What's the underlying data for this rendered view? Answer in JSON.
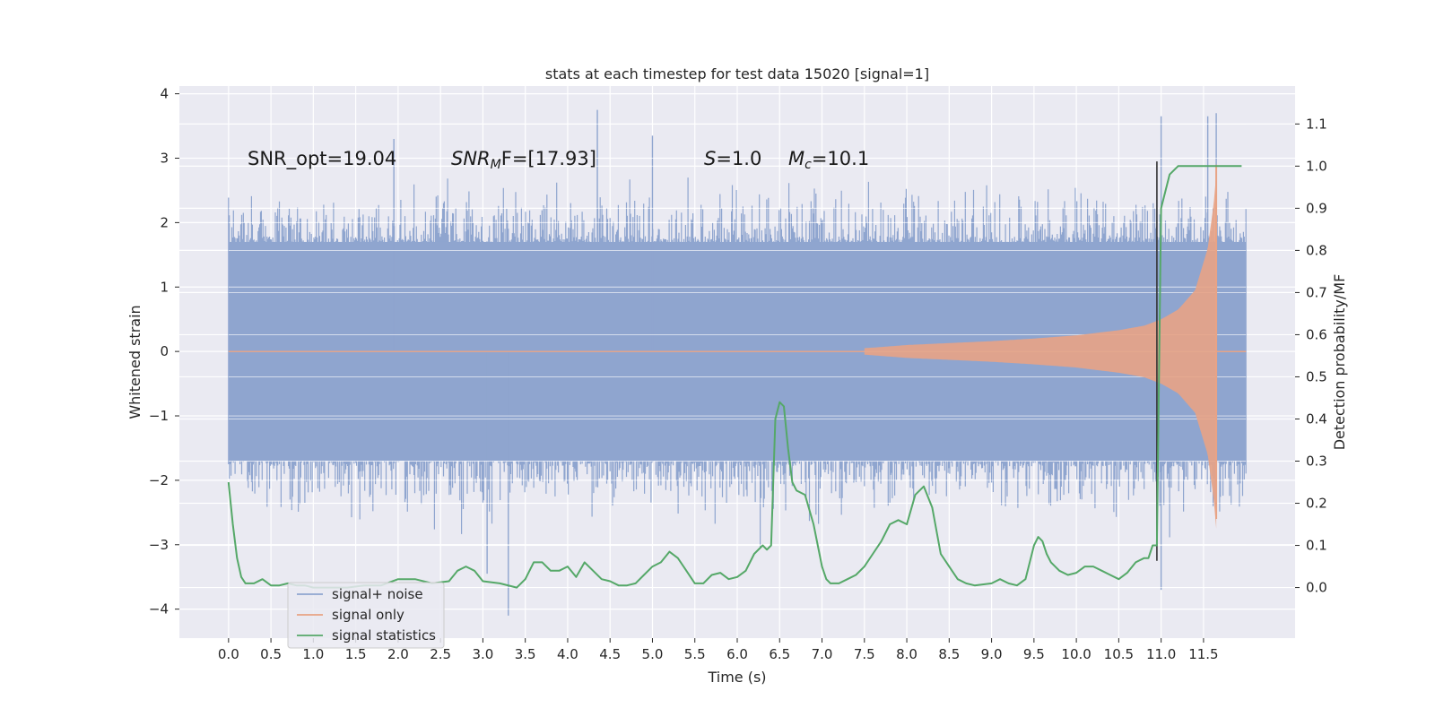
{
  "chart_data": {
    "type": "line",
    "title": "stats at each timestep for test data 15020 [signal=1]",
    "xlabel": "Time (s)",
    "ylabel": "Whitened strain",
    "y2label": "Detection probability/MF",
    "xlim": [
      -0.58,
      12.58
    ],
    "ylim": [
      -4.45,
      4.12
    ],
    "y2lim": [
      -0.12,
      1.19
    ],
    "x_ticks": [
      "0.0",
      "0.5",
      "1.0",
      "1.5",
      "2.0",
      "2.5",
      "3.0",
      "3.5",
      "4.0",
      "4.5",
      "5.0",
      "5.5",
      "6.0",
      "6.5",
      "7.0",
      "7.5",
      "8.0",
      "8.5",
      "9.0",
      "9.5",
      "10.0",
      "10.5",
      "11.0",
      "11.5"
    ],
    "y_ticks": [
      "4",
      "3",
      "2",
      "1",
      "0",
      "−1",
      "−2",
      "−3",
      "−4"
    ],
    "y_tick_values": [
      4,
      3,
      2,
      1,
      0,
      -1,
      -2,
      -3,
      -4
    ],
    "y2_ticks": [
      "1.1",
      "1.0",
      "0.9",
      "0.8",
      "0.7",
      "0.6",
      "0.5",
      "0.4",
      "0.3",
      "0.2",
      "0.1",
      "0.0"
    ],
    "y2_tick_values": [
      1.1,
      1.0,
      0.9,
      0.8,
      0.7,
      0.6,
      0.5,
      0.4,
      0.3,
      0.2,
      0.1,
      0.0
    ],
    "grid": true,
    "legend_placement": "lower-left",
    "annotations": {
      "snr_opt": "SNR_opt=19.04",
      "snr_mf_sym": "SNR",
      "snr_mf_sub": "M",
      "snr_mf_rest": "F=[17.93]",
      "s_sym": "S",
      "s_rest": "=1.0",
      "mc_sym": "M",
      "mc_sub": "c",
      "mc_rest": "=10.1"
    },
    "series": [
      {
        "name": "signal+ noise",
        "color": "#8fa5cf",
        "time_range": [
          0.0,
          12.0
        ],
        "envelope_typical": [
          -1.7,
          1.7
        ],
        "extremes": [
          {
            "x": 4.35,
            "y": 3.75
          },
          {
            "x": 3.3,
            "y": -4.1
          },
          {
            "x": 11.0,
            "y": -3.7
          },
          {
            "x": 11.55,
            "y": 3.65
          },
          {
            "x": 11.65,
            "y": 3.7
          },
          {
            "x": 11.0,
            "y": 3.65
          },
          {
            "x": 5.0,
            "y": 3.35
          },
          {
            "x": 1.95,
            "y": 3.3
          },
          {
            "x": 3.05,
            "y": -3.45
          }
        ]
      },
      {
        "name": "signal only",
        "color": "#e8a385",
        "type_detail": "chirp",
        "start_time": 7.5,
        "merger_time": 11.65,
        "end_time": 11.7,
        "amplitude": [
          {
            "x": 7.5,
            "y": 0.05
          },
          {
            "x": 8.0,
            "y": 0.1
          },
          {
            "x": 8.5,
            "y": 0.13
          },
          {
            "x": 9.0,
            "y": 0.16
          },
          {
            "x": 9.5,
            "y": 0.2
          },
          {
            "x": 10.0,
            "y": 0.25
          },
          {
            "x": 10.5,
            "y": 0.33
          },
          {
            "x": 10.8,
            "y": 0.4
          },
          {
            "x": 11.0,
            "y": 0.5
          },
          {
            "x": 11.2,
            "y": 0.65
          },
          {
            "x": 11.4,
            "y": 0.95
          },
          {
            "x": 11.55,
            "y": 1.6
          },
          {
            "x": 11.62,
            "y": 2.3
          },
          {
            "x": 11.66,
            "y": 2.9
          }
        ]
      },
      {
        "name": "signal statistics",
        "color": "#55a868",
        "axis": "right",
        "x": [
          0.0,
          0.05,
          0.1,
          0.15,
          0.2,
          0.3,
          0.4,
          0.5,
          0.6,
          0.7,
          0.8,
          0.9,
          1.0,
          1.2,
          1.4,
          1.6,
          1.8,
          2.0,
          2.2,
          2.4,
          2.6,
          2.7,
          2.8,
          2.9,
          3.0,
          3.2,
          3.4,
          3.5,
          3.6,
          3.7,
          3.8,
          3.9,
          4.0,
          4.1,
          4.2,
          4.3,
          4.4,
          4.5,
          4.6,
          4.7,
          4.8,
          4.9,
          5.0,
          5.1,
          5.2,
          5.3,
          5.4,
          5.5,
          5.6,
          5.7,
          5.8,
          5.9,
          6.0,
          6.1,
          6.2,
          6.3,
          6.35,
          6.4,
          6.45,
          6.5,
          6.55,
          6.6,
          6.65,
          6.7,
          6.8,
          6.9,
          6.95,
          7.0,
          7.05,
          7.1,
          7.2,
          7.3,
          7.4,
          7.5,
          7.6,
          7.7,
          7.8,
          7.9,
          8.0,
          8.1,
          8.2,
          8.3,
          8.4,
          8.5,
          8.6,
          8.7,
          8.8,
          9.0,
          9.1,
          9.2,
          9.3,
          9.4,
          9.5,
          9.55,
          9.6,
          9.65,
          9.7,
          9.8,
          9.9,
          10.0,
          10.1,
          10.2,
          10.3,
          10.4,
          10.5,
          10.6,
          10.7,
          10.8,
          10.85,
          10.9,
          10.95,
          11.0,
          11.1,
          11.2,
          11.4,
          11.6,
          11.8,
          11.95
        ],
        "y": [
          0.25,
          0.15,
          0.07,
          0.025,
          0.01,
          0.01,
          0.02,
          0.005,
          0.005,
          0.01,
          0.005,
          0.005,
          0.0,
          0.0,
          0.0,
          0.005,
          0.005,
          0.02,
          0.02,
          0.01,
          0.015,
          0.04,
          0.05,
          0.04,
          0.015,
          0.01,
          0.0,
          0.02,
          0.06,
          0.06,
          0.04,
          0.04,
          0.05,
          0.025,
          0.06,
          0.04,
          0.02,
          0.015,
          0.005,
          0.005,
          0.01,
          0.03,
          0.05,
          0.06,
          0.085,
          0.07,
          0.04,
          0.01,
          0.01,
          0.03,
          0.035,
          0.02,
          0.025,
          0.04,
          0.08,
          0.1,
          0.09,
          0.1,
          0.4,
          0.44,
          0.43,
          0.33,
          0.25,
          0.23,
          0.22,
          0.15,
          0.1,
          0.05,
          0.02,
          0.01,
          0.01,
          0.02,
          0.03,
          0.05,
          0.08,
          0.11,
          0.15,
          0.16,
          0.15,
          0.22,
          0.24,
          0.19,
          0.08,
          0.05,
          0.02,
          0.01,
          0.005,
          0.01,
          0.02,
          0.01,
          0.005,
          0.02,
          0.1,
          0.12,
          0.11,
          0.08,
          0.06,
          0.04,
          0.03,
          0.035,
          0.05,
          0.05,
          0.04,
          0.03,
          0.02,
          0.035,
          0.06,
          0.07,
          0.07,
          0.1,
          0.1,
          0.9,
          0.98,
          1.0,
          1.0,
          1.0,
          1.0,
          1.0
        ]
      },
      {
        "name": "",
        "color": "#333333",
        "type_detail": "vertical-marker",
        "x": 10.95,
        "y_range": [
          -3.25,
          2.95
        ]
      }
    ],
    "legend": [
      "signal+ noise",
      "signal only",
      "signal statistics"
    ]
  }
}
